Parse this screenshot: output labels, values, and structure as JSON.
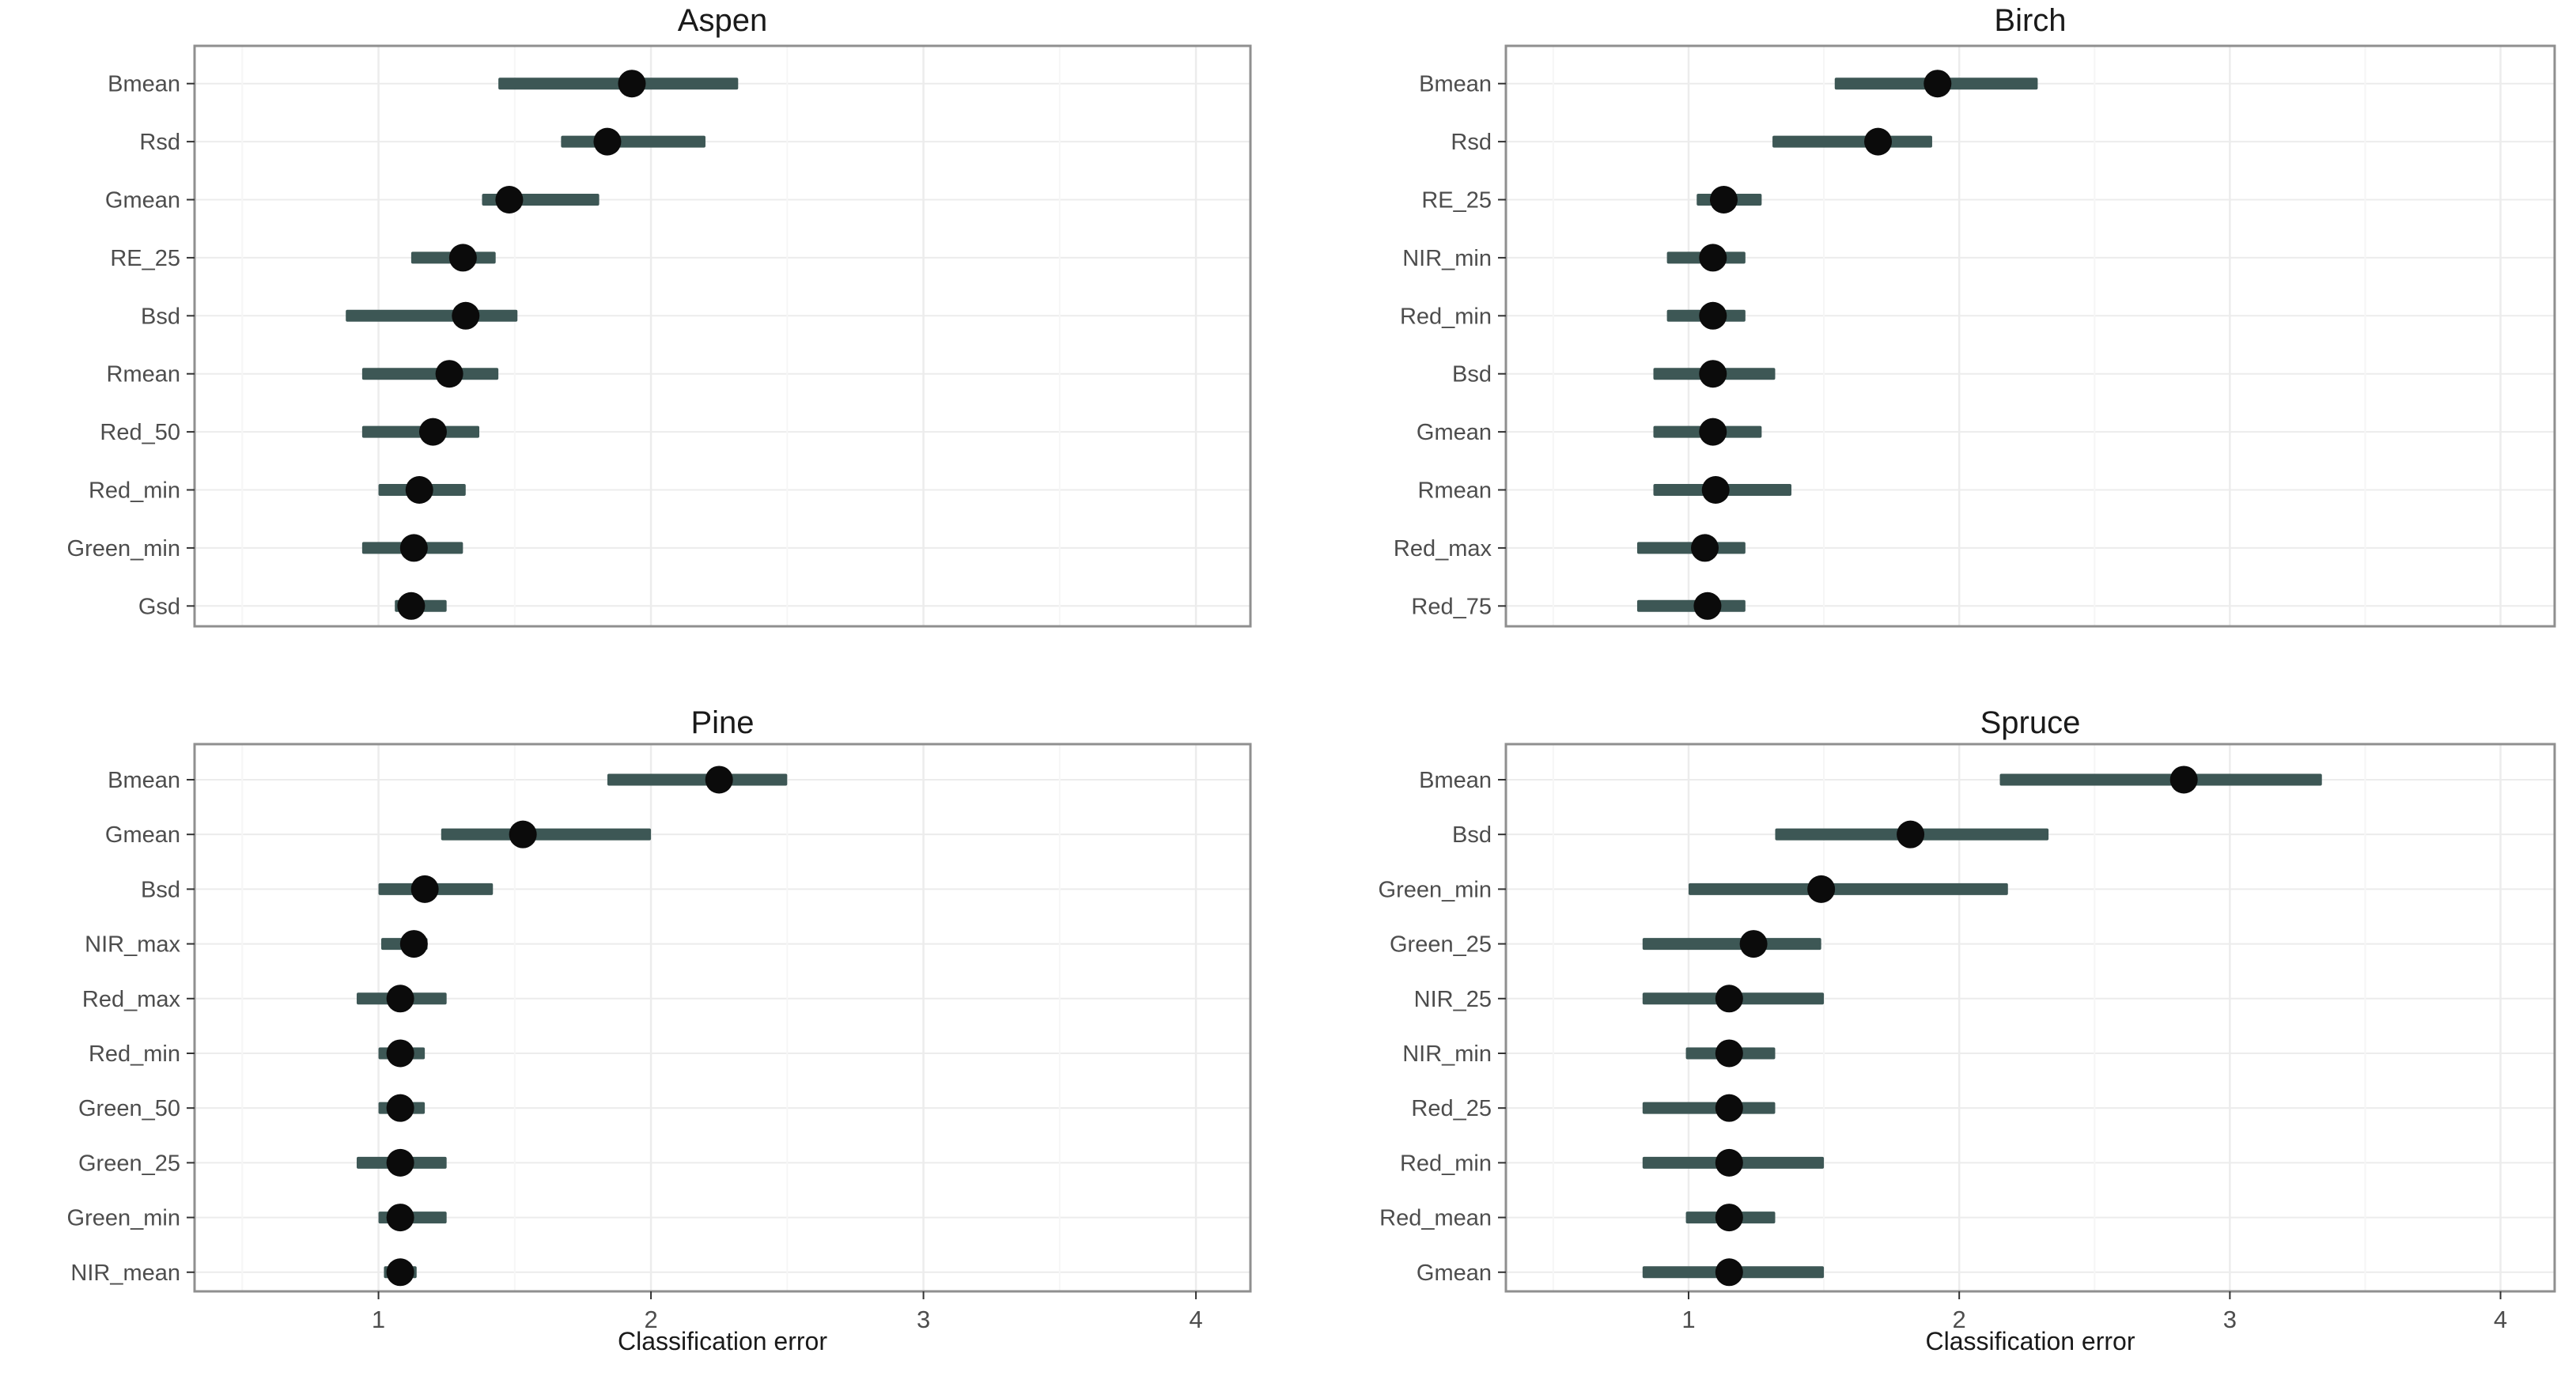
{
  "figure": {
    "background": "#ffffff"
  },
  "colors": {
    "bar": "#3d5755",
    "point": "#0b0b0b",
    "grid_major": "#ececec",
    "grid_minor": "#f6f6f6",
    "panel_border": "#8f8f8f",
    "axis_text": "#4d4d4d",
    "title_text": "#1a1a1a",
    "tick_mark": "#333333"
  },
  "chart_data": [
    {
      "type": "pointrange",
      "title": "Aspen",
      "xlabel": "",
      "x_domain": [
        0.325,
        4.2
      ],
      "x_ticks": [
        1,
        2,
        3,
        4
      ],
      "x_minor_ticks": [
        0.5,
        1.5,
        2.5,
        3.5
      ],
      "x_axis_visible": false,
      "grid": true,
      "rows": [
        {
          "label": "Bmean",
          "value": 1.93,
          "lo": 1.44,
          "hi": 2.32
        },
        {
          "label": "Rsd",
          "value": 1.84,
          "lo": 1.67,
          "hi": 2.2
        },
        {
          "label": "Gmean",
          "value": 1.48,
          "lo": 1.38,
          "hi": 1.81
        },
        {
          "label": "RE_25",
          "value": 1.31,
          "lo": 1.12,
          "hi": 1.43
        },
        {
          "label": "Bsd",
          "value": 1.32,
          "lo": 0.88,
          "hi": 1.51
        },
        {
          "label": "Rmean",
          "value": 1.26,
          "lo": 0.94,
          "hi": 1.44
        },
        {
          "label": "Red_50",
          "value": 1.2,
          "lo": 0.94,
          "hi": 1.37
        },
        {
          "label": "Red_min",
          "value": 1.15,
          "lo": 1.0,
          "hi": 1.32
        },
        {
          "label": "Green_min",
          "value": 1.13,
          "lo": 0.94,
          "hi": 1.31
        },
        {
          "label": "Gsd",
          "value": 1.12,
          "lo": 1.06,
          "hi": 1.25
        }
      ]
    },
    {
      "type": "pointrange",
      "title": "Birch",
      "xlabel": "",
      "x_domain": [
        0.325,
        4.2
      ],
      "x_ticks": [
        1,
        2,
        3,
        4
      ],
      "x_minor_ticks": [
        0.5,
        1.5,
        2.5,
        3.5
      ],
      "x_axis_visible": false,
      "grid": true,
      "rows": [
        {
          "label": "Bmean",
          "value": 1.92,
          "lo": 1.54,
          "hi": 2.29
        },
        {
          "label": "Rsd",
          "value": 1.7,
          "lo": 1.31,
          "hi": 1.9
        },
        {
          "label": "RE_25",
          "value": 1.13,
          "lo": 1.03,
          "hi": 1.27
        },
        {
          "label": "NIR_min",
          "value": 1.09,
          "lo": 0.92,
          "hi": 1.21
        },
        {
          "label": "Red_min",
          "value": 1.09,
          "lo": 0.92,
          "hi": 1.21
        },
        {
          "label": "Bsd",
          "value": 1.09,
          "lo": 0.87,
          "hi": 1.32
        },
        {
          "label": "Gmean",
          "value": 1.09,
          "lo": 0.87,
          "hi": 1.27
        },
        {
          "label": "Rmean",
          "value": 1.1,
          "lo": 0.87,
          "hi": 1.38
        },
        {
          "label": "Red_max",
          "value": 1.06,
          "lo": 0.81,
          "hi": 1.21
        },
        {
          "label": "Red_75",
          "value": 1.07,
          "lo": 0.81,
          "hi": 1.21
        }
      ]
    },
    {
      "type": "pointrange",
      "title": "Pine",
      "xlabel": "Classification error",
      "x_domain": [
        0.325,
        4.2
      ],
      "x_ticks": [
        1,
        2,
        3,
        4
      ],
      "x_minor_ticks": [
        0.5,
        1.5,
        2.5,
        3.5
      ],
      "x_axis_visible": true,
      "grid": true,
      "rows": [
        {
          "label": "Bmean",
          "value": 2.25,
          "lo": 1.84,
          "hi": 2.5
        },
        {
          "label": "Gmean",
          "value": 1.53,
          "lo": 1.23,
          "hi": 2.0
        },
        {
          "label": "Bsd",
          "value": 1.17,
          "lo": 1.0,
          "hi": 1.42
        },
        {
          "label": "NIR_max",
          "value": 1.13,
          "lo": 1.01,
          "hi": 1.18
        },
        {
          "label": "Red_max",
          "value": 1.08,
          "lo": 0.92,
          "hi": 1.25
        },
        {
          "label": "Red_min",
          "value": 1.08,
          "lo": 1.0,
          "hi": 1.17
        },
        {
          "label": "Green_50",
          "value": 1.08,
          "lo": 1.0,
          "hi": 1.17
        },
        {
          "label": "Green_25",
          "value": 1.08,
          "lo": 0.92,
          "hi": 1.25
        },
        {
          "label": "Green_min",
          "value": 1.08,
          "lo": 1.0,
          "hi": 1.25
        },
        {
          "label": "NIR_mean",
          "value": 1.08,
          "lo": 1.02,
          "hi": 1.14
        }
      ]
    },
    {
      "type": "pointrange",
      "title": "Spruce",
      "xlabel": "Classification error",
      "x_domain": [
        0.325,
        4.2
      ],
      "x_ticks": [
        1,
        2,
        3,
        4
      ],
      "x_minor_ticks": [
        0.5,
        1.5,
        2.5,
        3.5
      ],
      "x_axis_visible": true,
      "grid": true,
      "rows": [
        {
          "label": "Bmean",
          "value": 2.83,
          "lo": 2.15,
          "hi": 3.34
        },
        {
          "label": "Bsd",
          "value": 1.82,
          "lo": 1.32,
          "hi": 2.33
        },
        {
          "label": "Green_min",
          "value": 1.49,
          "lo": 1.0,
          "hi": 2.18
        },
        {
          "label": "Green_25",
          "value": 1.24,
          "lo": 0.83,
          "hi": 1.49
        },
        {
          "label": "NIR_25",
          "value": 1.15,
          "lo": 0.83,
          "hi": 1.5
        },
        {
          "label": "NIR_min",
          "value": 1.15,
          "lo": 0.99,
          "hi": 1.32
        },
        {
          "label": "Red_25",
          "value": 1.15,
          "lo": 0.83,
          "hi": 1.32
        },
        {
          "label": "Red_min",
          "value": 1.15,
          "lo": 0.83,
          "hi": 1.5
        },
        {
          "label": "Red_mean",
          "value": 1.15,
          "lo": 0.99,
          "hi": 1.32
        },
        {
          "label": "Gmean",
          "value": 1.15,
          "lo": 0.83,
          "hi": 1.5
        }
      ]
    }
  ]
}
